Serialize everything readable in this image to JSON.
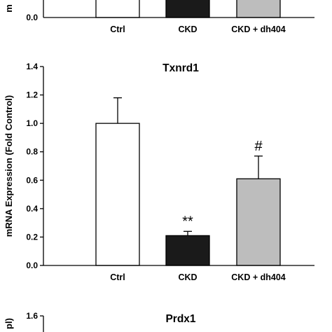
{
  "chart_data": [
    {
      "type": "bar",
      "title": "",
      "ylabel": "m",
      "ylabel_partial": true,
      "categories": [
        "Ctrl",
        "CKD",
        "CKD + dh404"
      ],
      "values": [
        null,
        null,
        null
      ],
      "bar_colors": [
        "#ffffff",
        "#1a1a1a",
        "#bdbdbd"
      ],
      "y_ticks": [
        "0.0"
      ],
      "cropped": "top"
    },
    {
      "type": "bar",
      "title": "Txnrd1",
      "ylabel": "mRNA Expression (Fold Control)",
      "xlabel": "",
      "categories": [
        "Ctrl",
        "CKD",
        "CKD + dh404"
      ],
      "values": [
        1.0,
        0.21,
        0.61
      ],
      "errors": [
        0.18,
        0.03,
        0.16
      ],
      "bar_colors": [
        "#ffffff",
        "#1a1a1a",
        "#bdbdbd"
      ],
      "annotations": [
        "",
        "**",
        "#"
      ],
      "ylim": [
        0,
        1.4
      ],
      "y_ticks": [
        "0.0",
        "0.2",
        "0.4",
        "0.6",
        "0.8",
        "1.0",
        "1.2",
        "1.4"
      ]
    },
    {
      "type": "bar",
      "title": "Prdx1",
      "ylabel": "pl)",
      "ylabel_partial": true,
      "categories": [],
      "values": [],
      "y_ticks": [
        "1.6"
      ],
      "cropped": "bottom"
    }
  ]
}
